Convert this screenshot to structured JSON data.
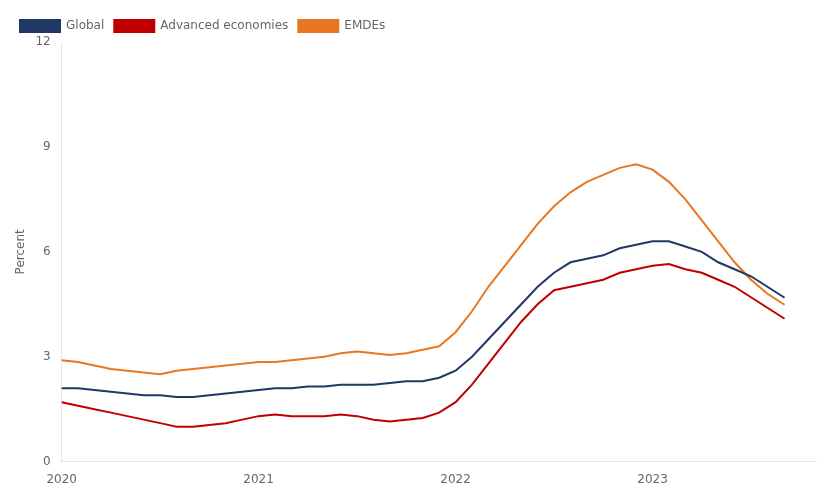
{
  "chart_data": {
    "type": "line",
    "ylabel": "Percent",
    "x": [
      2020.0,
      2020.0833333333333,
      2020.1666666666667,
      2020.25,
      2020.3333333333333,
      2020.4166666666667,
      2020.5,
      2020.5833333333333,
      2020.6666666666667,
      2020.75,
      2020.8333333333333,
      2020.9166666666667,
      2021.0,
      2021.0833333333333,
      2021.1666666666667,
      2021.25,
      2021.3333333333333,
      2021.4166666666667,
      2021.5,
      2021.5833333333333,
      2021.6666666666667,
      2021.75,
      2021.8333333333333,
      2021.9166666666667,
      2022.0,
      2022.0833333333333,
      2022.1666666666667,
      2022.25,
      2022.3333333333333,
      2022.4166666666667,
      2022.5,
      2022.5833333333333,
      2022.6666666666667,
      2022.75,
      2022.8333333333333,
      2022.9166666666667,
      2023.0,
      2023.0833333333333,
      2023.1666666666667,
      2023.25,
      2023.3333333333333,
      2023.4166666666667,
      2023.5,
      2023.5833333333333,
      2023.6666666666667
    ],
    "series": [
      {
        "name": "Global",
        "color": "#1f3864",
        "values": [
          2.1,
          2.1,
          2.05,
          2.0,
          1.95,
          1.9,
          1.9,
          1.85,
          1.85,
          1.9,
          1.95,
          2.0,
          2.05,
          2.1,
          2.1,
          2.15,
          2.15,
          2.2,
          2.2,
          2.2,
          2.25,
          2.3,
          2.3,
          2.4,
          2.6,
          3.0,
          3.5,
          4.0,
          4.5,
          5.0,
          5.4,
          5.7,
          5.8,
          5.9,
          6.1,
          6.2,
          6.3,
          6.3,
          6.15,
          6.0,
          5.7,
          5.5,
          5.3,
          5.0,
          4.7
        ]
      },
      {
        "name": "Advanced economies",
        "color": "#c00000",
        "values": [
          1.7,
          1.6,
          1.5,
          1.4,
          1.3,
          1.2,
          1.1,
          1.0,
          1.0,
          1.05,
          1.1,
          1.2,
          1.3,
          1.35,
          1.3,
          1.3,
          1.3,
          1.35,
          1.3,
          1.2,
          1.15,
          1.2,
          1.25,
          1.4,
          1.7,
          2.2,
          2.8,
          3.4,
          4.0,
          4.5,
          4.9,
          5.0,
          5.1,
          5.2,
          5.4,
          5.5,
          5.6,
          5.65,
          5.5,
          5.4,
          5.2,
          5.0,
          4.7,
          4.4,
          4.1
        ]
      },
      {
        "name": "EMDEs",
        "color": "#e87722",
        "values": [
          2.9,
          2.85,
          2.75,
          2.65,
          2.6,
          2.55,
          2.5,
          2.6,
          2.65,
          2.7,
          2.75,
          2.8,
          2.85,
          2.85,
          2.9,
          2.95,
          3.0,
          3.1,
          3.15,
          3.1,
          3.05,
          3.1,
          3.2,
          3.3,
          3.7,
          4.3,
          5.0,
          5.6,
          6.2,
          6.8,
          7.3,
          7.7,
          8.0,
          8.2,
          8.4,
          8.5,
          8.35,
          8.0,
          7.5,
          6.9,
          6.3,
          5.7,
          5.2,
          4.8,
          4.5
        ]
      }
    ],
    "xlim": [
      2020.0,
      2023.83
    ],
    "xticks": [
      2020,
      2021,
      2022,
      2023
    ],
    "ylim": [
      0,
      12
    ],
    "yticks": [
      0,
      3,
      6,
      9,
      12
    ],
    "grid": false,
    "legend": "upper left"
  }
}
